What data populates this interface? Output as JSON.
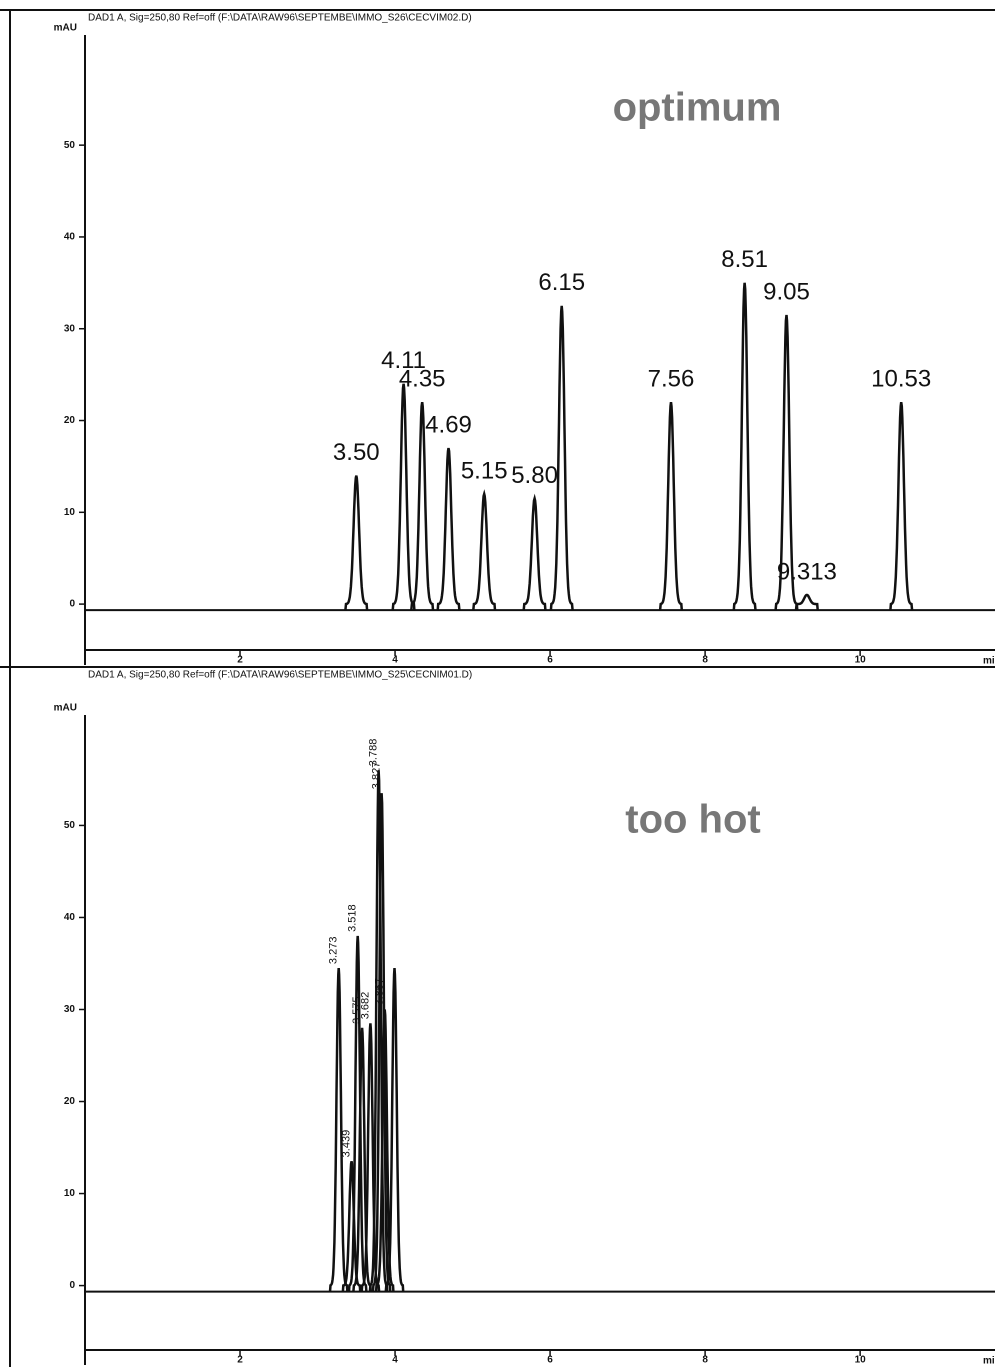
{
  "chart_data": [
    {
      "type": "chromatogram",
      "title": "DAD1 A, Sig=250,80 Ref=off (F:\\DATA\\RAW96\\SEPTEMBE\\IMMO_S26\\CECVIM02.D)",
      "y_label": "mAU",
      "x_label": "min",
      "annotation": "optimum",
      "xlim": [
        0,
        11.74
      ],
      "ylim": [
        -5,
        62
      ],
      "xticks": [
        2,
        4,
        6,
        8,
        10
      ],
      "yticks": [
        0,
        10,
        20,
        30,
        40,
        50
      ],
      "color": "#111111",
      "x": [
        3.5,
        4.11,
        4.35,
        4.69,
        5.15,
        5.8,
        6.15,
        7.56,
        8.51,
        9.05,
        9.313,
        10.53
      ],
      "values": [
        14,
        24,
        22,
        17,
        12,
        11.5,
        32.5,
        22,
        35,
        31.5,
        1,
        22
      ],
      "peak_labels": [
        "3.50",
        "4.11",
        "4.35",
        "4.69",
        "5.15",
        "5.80",
        "6.15",
        "7.56",
        "8.51",
        "9.05",
        "9.313",
        "10.53"
      ]
    },
    {
      "type": "chromatogram",
      "title": "DAD1 A, Sig=250,80 Ref=off (F:\\DATA\\RAW96\\SEPTEMBE\\IMMO_S25\\CECNIM01.D)",
      "y_label": "mAU",
      "x_label": "min",
      "annotation": "too hot",
      "xlim": [
        0,
        11.74
      ],
      "ylim": [
        -7,
        62
      ],
      "xticks": [
        2,
        4,
        6,
        8,
        10
      ],
      "yticks": [
        0,
        10,
        20,
        30,
        40,
        50
      ],
      "color": "#111111",
      "x": [
        3.273,
        3.439,
        3.518,
        3.575,
        3.682,
        3.788,
        3.827,
        3.867,
        3.993
      ],
      "values": [
        34.5,
        13.5,
        38,
        28,
        28.5,
        56,
        53.5,
        30,
        34.5
      ],
      "peak_labels": [
        "3.273",
        "3.439",
        "3.518",
        "3.575",
        "3.682",
        "3.788",
        "3.827",
        "3.867",
        null
      ]
    }
  ]
}
